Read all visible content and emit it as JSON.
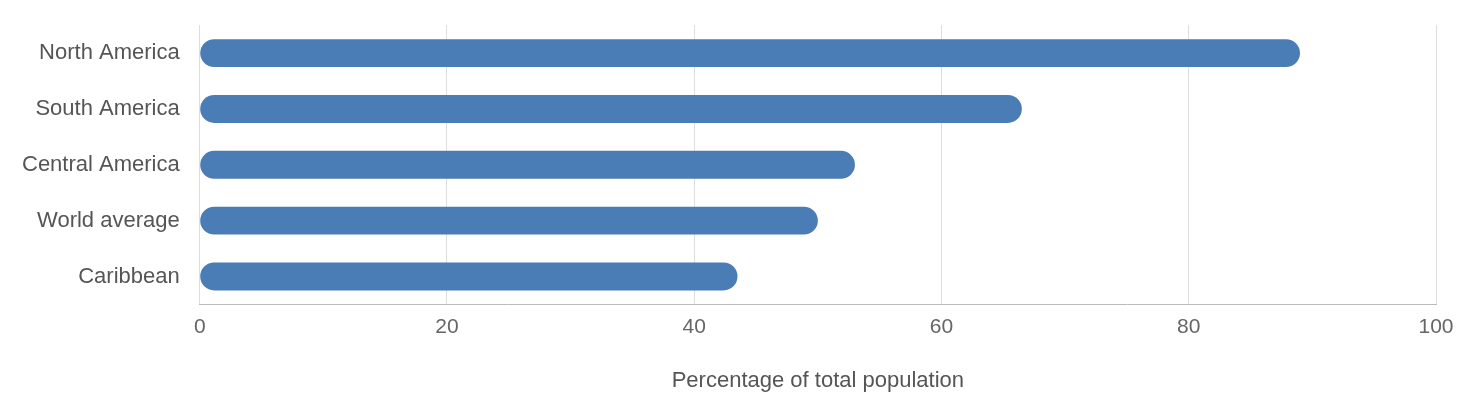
{
  "chart_data": {
    "type": "bar",
    "orientation": "horizontal",
    "categories": [
      "North America",
      "South America",
      "Central America",
      "World average",
      "Caribbean"
    ],
    "values": [
      89,
      66.5,
      53,
      50,
      43.5
    ],
    "color": "#4a7db5",
    "xlabel": "Percentage of total population",
    "xlim": [
      0,
      100
    ],
    "xticks": [
      0,
      20,
      40,
      60,
      80,
      100
    ],
    "grid": true
  }
}
